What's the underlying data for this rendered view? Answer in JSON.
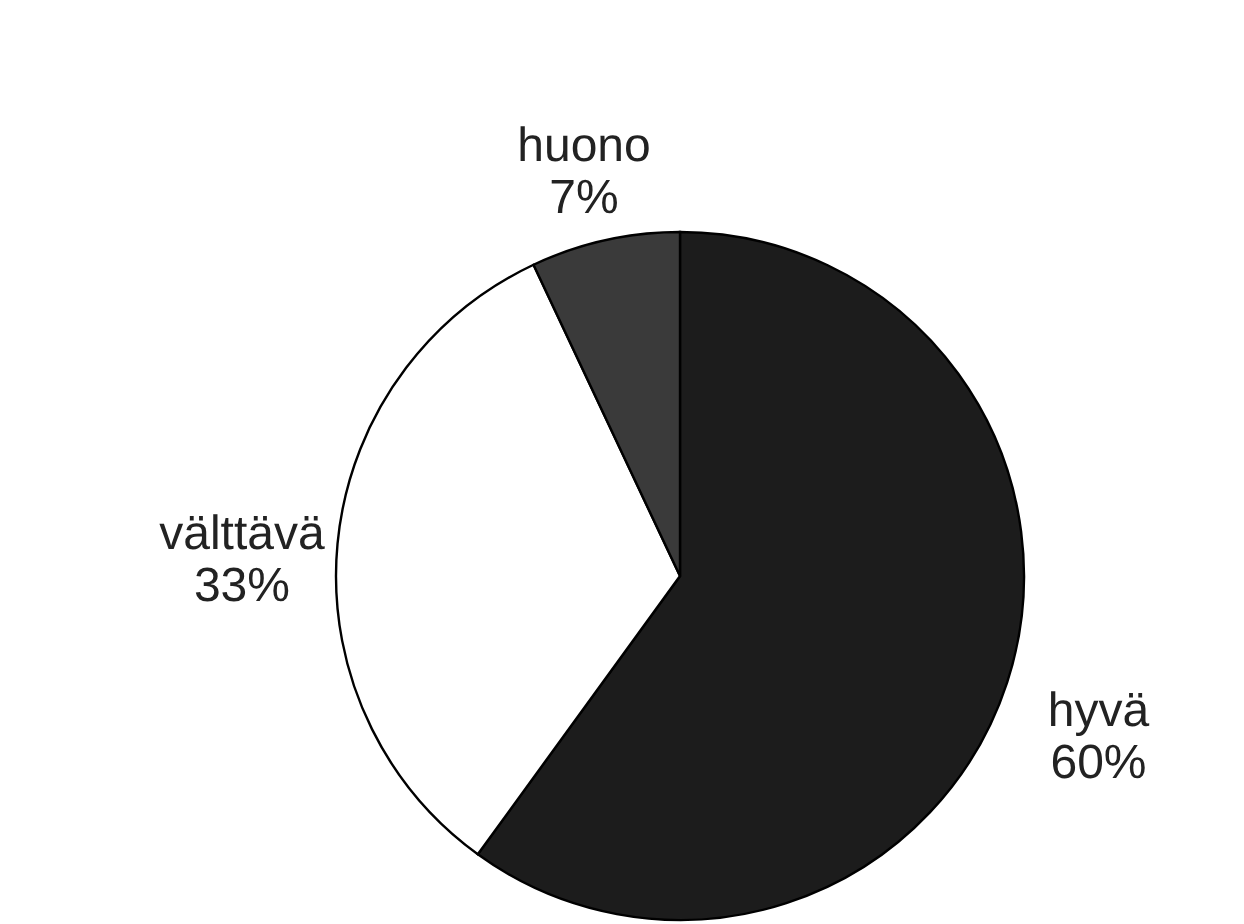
{
  "chart_data": {
    "type": "pie",
    "categories": [
      "hyvä",
      "välttävä",
      "huono"
    ],
    "values": [
      60,
      33,
      7
    ],
    "colors": [
      "#1c1c1c",
      "#ffffff",
      "#3a3a3a"
    ],
    "value_labels": [
      "60%",
      "33%",
      "7%"
    ]
  }
}
